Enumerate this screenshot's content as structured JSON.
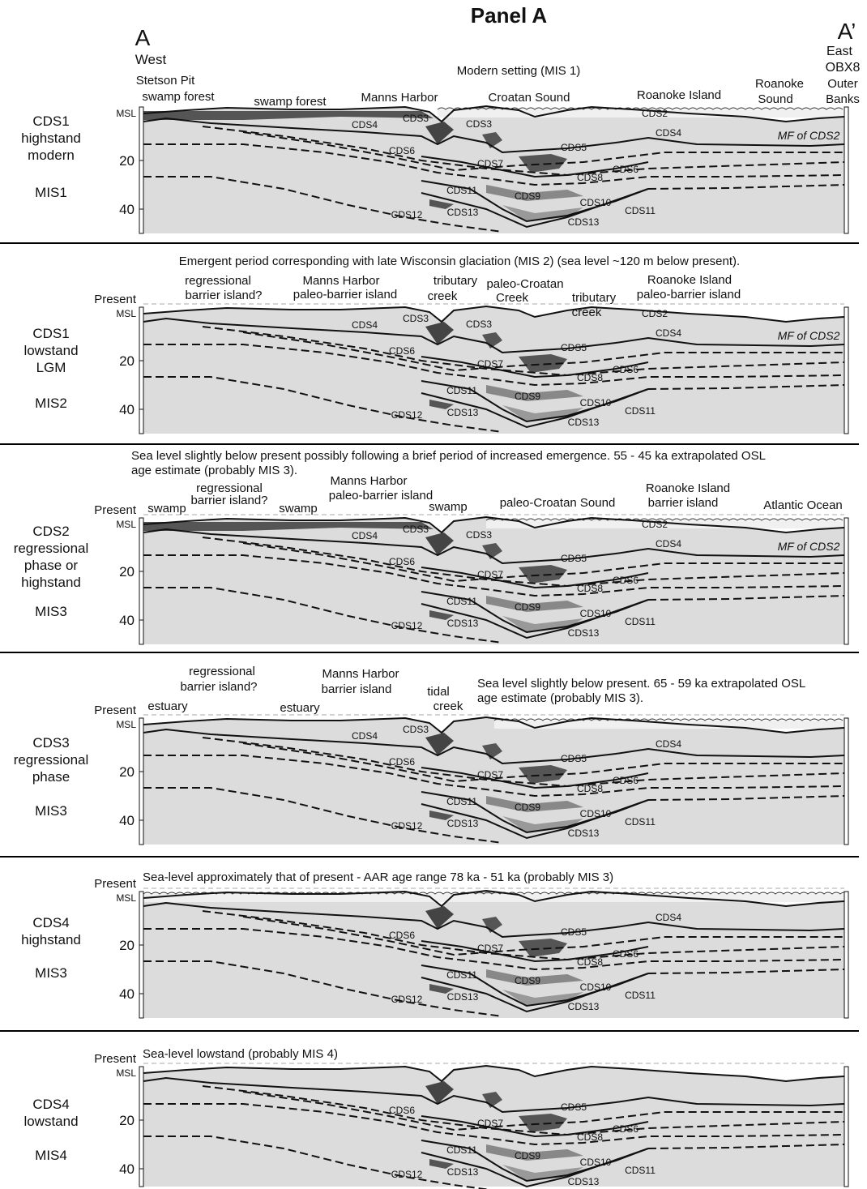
{
  "title": "Panel A",
  "section_ends": {
    "left": "A",
    "left_direction": "West",
    "right": "A’",
    "right_direction": "East",
    "right_site": "OBX8"
  },
  "panels": [
    {
      "side_label": [
        "CDS1",
        "highstand",
        "modern"
      ],
      "mis": "MIS1",
      "depth_axis": {
        "surface_label": "MSL",
        "ticks": [
          20,
          40
        ]
      },
      "caption": [
        "Modern setting (MIS 1)"
      ],
      "place_labels": [
        "Stetson Pit",
        "swamp forest",
        "swamp forest",
        "Manns Harbor",
        "Croatan Sound",
        "Roanoke Island",
        "Roanoke",
        "Sound",
        "Outer",
        "Banks"
      ],
      "unit_labels": [
        "CDS2",
        "CDS3",
        "CDS3",
        "CDS4",
        "CDS4",
        "CDS5",
        "CDS6",
        "CDS7",
        "CDS6",
        "CDS8",
        "CDS11",
        "CDS9",
        "CDS10",
        "CDS12",
        "CDS13",
        "CDS11",
        "CDS13",
        "MF of CDS2"
      ]
    },
    {
      "side_label": [
        "CDS1",
        "lowstand",
        "LGM"
      ],
      "mis": "MIS2",
      "depth_axis": {
        "present_label": "Present",
        "surface_label": "MSL",
        "ticks": [
          20,
          40
        ]
      },
      "caption": [
        "Emergent period corresponding with late Wisconsin glaciation (MIS 2) (sea level ~120 m below present)."
      ],
      "place_labels": [
        "regressional",
        "barrier island?",
        "Manns Harbor",
        "paleo-barrier island",
        "tributary",
        "creek",
        "paleo-Croatan",
        "Creek",
        "tributary",
        "creek",
        "Roanoke Island",
        "paleo-barrier island"
      ],
      "unit_labels": [
        "CDS2",
        "CDS3",
        "CDS3",
        "CDS4",
        "CDS4",
        "CDS5",
        "CDS6",
        "CDS7",
        "CDS6",
        "CDS8",
        "CDS11",
        "CDS9",
        "CDS10",
        "CDS12",
        "CDS13",
        "CDS11",
        "CDS13",
        "MF of CDS2"
      ]
    },
    {
      "side_label": [
        "CDS2",
        "regressional",
        "phase or",
        "highstand"
      ],
      "mis": "MIS3",
      "depth_axis": {
        "present_label": "Present",
        "surface_label": "MSL",
        "ticks": [
          20,
          40
        ]
      },
      "caption": [
        "Sea level slightly below present possibly following a brief period of increased emergence. 55 - 45 ka extrapolated OSL",
        "age estimate (probably MIS 3)."
      ],
      "place_labels": [
        "swamp",
        "regressional",
        "barrier island?",
        "swamp",
        "Manns Harbor",
        "paleo-barrier island",
        "swamp",
        "paleo-Croatan Sound",
        "Roanoke Island",
        "barrier island",
        "Atlantic Ocean"
      ],
      "unit_labels": [
        "CDS2",
        "CDS3",
        "CDS3",
        "CDS4",
        "CDS4",
        "CDS5",
        "CDS6",
        "CDS7",
        "CDS6",
        "CDS8",
        "CDS11",
        "CDS9",
        "CDS10",
        "CDS12",
        "CDS13",
        "CDS11",
        "CDS13",
        "MF of CDS2"
      ]
    },
    {
      "side_label": [
        "CDS3",
        "regressional",
        "phase"
      ],
      "mis": "MIS3",
      "depth_axis": {
        "present_label": "Present",
        "surface_label": "MSL",
        "ticks": [
          20,
          40
        ]
      },
      "caption": [
        "Sea level slightly below present. 65 - 59 ka extrapolated OSL",
        "age estimate (probably MIS 3)."
      ],
      "place_labels": [
        "estuary",
        "regressional",
        "barrier island?",
        "estuary",
        "Manns Harbor",
        "barrier island",
        "tidal",
        "creek"
      ],
      "unit_labels": [
        "CDS3",
        "CDS4",
        "CDS4",
        "CDS5",
        "CDS6",
        "CDS7",
        "CDS6",
        "CDS8",
        "CDS11",
        "CDS9",
        "CDS10",
        "CDS12",
        "CDS13",
        "CDS11",
        "CDS13"
      ]
    },
    {
      "side_label": [
        "CDS4",
        "highstand"
      ],
      "mis": "MIS3",
      "depth_axis": {
        "present_label": "Present",
        "surface_label": "MSL",
        "ticks": [
          20,
          40
        ]
      },
      "caption": [
        "Sea-level approximately that of present - AAR age range 78 ka - 51 ka (probably MIS 3)"
      ],
      "place_labels": [],
      "unit_labels": [
        "CDS4",
        "CDS5",
        "CDS6",
        "CDS7",
        "CDS6",
        "CDS8",
        "CDS11",
        "CDS9",
        "CDS10",
        "CDS12",
        "CDS13",
        "CDS11",
        "CDS13"
      ]
    },
    {
      "side_label": [
        "CDS4",
        "lowstand"
      ],
      "mis": "MIS4",
      "depth_axis": {
        "present_label": "Present",
        "surface_label": "MSL",
        "ticks": [
          20,
          40
        ]
      },
      "caption": [
        "Sea-level lowstand (probably MIS 4)"
      ],
      "place_labels": [],
      "unit_labels": [
        "CDS5",
        "CDS6",
        "CDS7",
        "CDS6",
        "CDS8",
        "CDS11",
        "CDS9",
        "CDS10",
        "CDS12",
        "CDS13",
        "CDS11",
        "CDS13"
      ]
    }
  ]
}
